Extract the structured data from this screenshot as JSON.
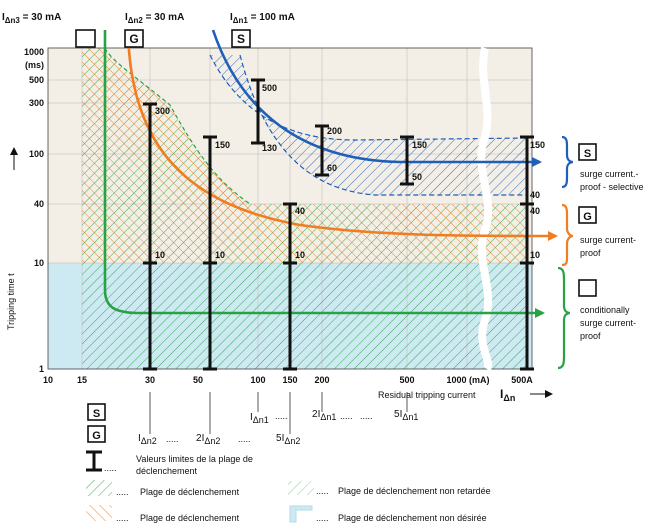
{
  "header": {
    "i_dn3": {
      "main": "I",
      "sub": "Δn3",
      "rest": " = 30 mA"
    },
    "i_dn2": {
      "main": "I",
      "sub": "Δn2",
      "rest": " = 30 mA"
    },
    "i_dn1": {
      "main": "I",
      "sub": "Δn1",
      "rest": " = 100 mA"
    }
  },
  "badges": {
    "s": "S",
    "g": "G"
  },
  "y_axis": {
    "label": "Tripping time t",
    "ticks": [
      "1000",
      "(ms)",
      "500",
      "300",
      "100",
      "40",
      "10",
      "1"
    ]
  },
  "x_axis": {
    "label": "Residual tripping current",
    "ticks": [
      "10",
      "15",
      "30",
      "50",
      "100",
      "150",
      "200",
      "500",
      "1000 (mA)",
      "500A"
    ],
    "unit_main": "I",
    "unit_sub": "Δn"
  },
  "bar_labels": {
    "b30_top": "300",
    "b30_bot": "10",
    "b55_top": "150",
    "b55_bot": "10",
    "b95_top": "40",
    "b95_bot": "10",
    "b130_top": "500",
    "b130_bot": "130",
    "b165_top": "200",
    "b165_bot": "60",
    "b205_top": "150",
    "b205_bot": "50",
    "b500_top": "150",
    "b500_mid": "40",
    "b500_mid2": "40",
    "b500_bot": "10"
  },
  "legend_right": {
    "s_text": [
      "surge current.-",
      "proof - selective"
    ],
    "g_text": [
      "surge current-",
      "proof"
    ],
    "n_text": [
      "conditionally",
      "surge current-",
      "proof"
    ]
  },
  "multiples": {
    "s_row": [
      {
        "pre": "",
        "main": "I",
        "sub": "Δn1"
      },
      {
        "pre": "2",
        "main": "I",
        "sub": "Δn1"
      },
      {
        "pre": "5",
        "main": "I",
        "sub": "Δn1"
      }
    ],
    "g_row": [
      {
        "pre": "",
        "main": "I",
        "sub": "Δn2"
      },
      {
        "pre": "2",
        "main": "I",
        "sub": "Δn2"
      },
      {
        "pre": "5",
        "main": "I",
        "sub": "Δn2"
      }
    ]
  },
  "legend_bottom": {
    "limits": [
      "Valeurs limites de la plage de",
      "déclenchement"
    ],
    "green_hatch": "Plage de déclenchement",
    "non_delayed": "Plage de déclenchement non retardée",
    "orange_hatch": "Plage de déclenchement",
    "undesired": "Plage de déclenchement non désirée",
    "dots": "....."
  },
  "colors": {
    "blue": "#1f5fb8",
    "orange": "#f07d21",
    "green": "#27a244",
    "beige": "#f4efe6",
    "light_blue": "#cde9f2",
    "black": "#111111"
  }
}
